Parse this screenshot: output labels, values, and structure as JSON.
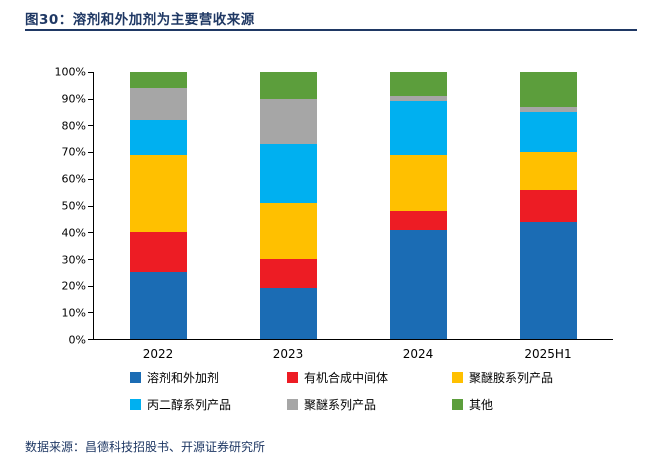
{
  "header": {
    "figure_label": "图30：",
    "title": "溶剂和外加剂为主要营收来源"
  },
  "footer": {
    "source": "数据来源：昌德科技招股书、开源证券研究所"
  },
  "chart_data": {
    "type": "bar",
    "stacked": true,
    "percent": true,
    "title": "图30：溶剂和外加剂为主要营收来源",
    "categories": [
      "2022",
      "2023",
      "2024",
      "2025H1"
    ],
    "series": [
      {
        "id": "solvents-admixtures",
        "name": "溶剂和外加剂",
        "color": "#1B6CB4",
        "values": [
          25,
          19,
          41,
          44
        ]
      },
      {
        "id": "organic-intermediates",
        "name": "有机合成中间体",
        "color": "#ED1C24",
        "values": [
          15,
          11,
          7,
          12
        ]
      },
      {
        "id": "polyetheramine",
        "name": "聚醚胺系列产品",
        "color": "#FFC000",
        "values": [
          29,
          21,
          21,
          14
        ]
      },
      {
        "id": "propylene-glycol",
        "name": "丙二醇系列产品",
        "color": "#00B0F0",
        "values": [
          13,
          22,
          20,
          15
        ]
      },
      {
        "id": "polyether",
        "name": "聚醚系列产品",
        "color": "#A6A6A6",
        "values": [
          12,
          17,
          2,
          2
        ]
      },
      {
        "id": "others",
        "name": "其他",
        "color": "#5C9E3C",
        "values": [
          6,
          10,
          9,
          13
        ]
      }
    ],
    "y_ticks": [
      "100%",
      "90%",
      "80%",
      "70%",
      "60%",
      "50%",
      "40%",
      "30%",
      "20%",
      "10%",
      "0%"
    ],
    "ylim": [
      0,
      100
    ],
    "xlabel": "",
    "ylabel": "",
    "grid": false,
    "legend_position": "bottom"
  }
}
